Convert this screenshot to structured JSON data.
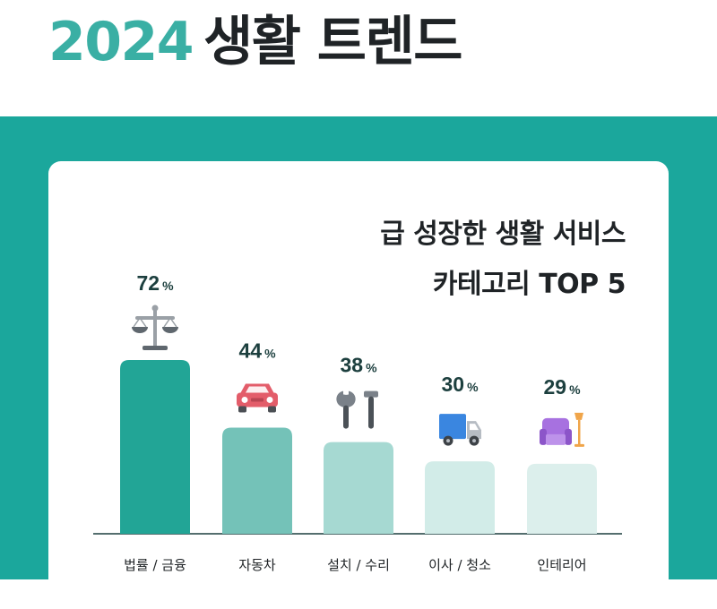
{
  "header": {
    "year": "2024",
    "title": "생활 트렌드"
  },
  "card": {
    "title_line1": "급 성장한 생활 서비스",
    "title_line2": "카테고리 TOP 5"
  },
  "colors": {
    "band": "#1ba79c",
    "year_text": "#3aafa4",
    "bars": [
      "#22a596",
      "#74c2b8",
      "#a6d9d2",
      "#d2ece8",
      "#dcefec"
    ]
  },
  "chart_data": {
    "type": "bar",
    "categories": [
      "법률 / 금융",
      "자동차",
      "설치 / 수리",
      "이사 / 청소",
      "인테리어"
    ],
    "values": [
      72,
      44,
      38,
      30,
      29
    ],
    "unit": "%",
    "icons": [
      "scales-icon",
      "car-icon",
      "tools-icon",
      "truck-icon",
      "armchair-lamp-icon"
    ],
    "title": "급 성장한 생활 서비스 카테고리 TOP 5",
    "xlabel": "",
    "ylabel": "",
    "ylim": [
      0,
      72
    ],
    "grid": false,
    "legend": "none"
  }
}
